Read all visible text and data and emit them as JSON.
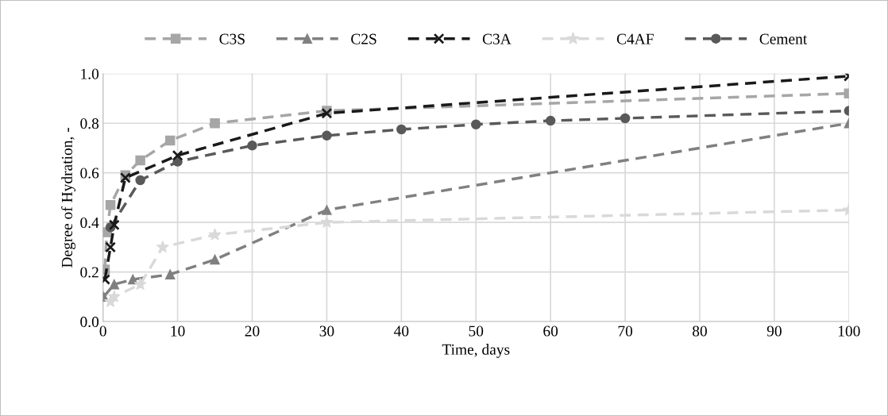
{
  "chart_data": {
    "type": "line",
    "xlabel": "Time, days",
    "ylabel": "Degree of Hydration, -",
    "xlim": [
      0,
      100
    ],
    "xticks": [
      0,
      10,
      20,
      30,
      40,
      50,
      60,
      70,
      80,
      90,
      100
    ],
    "ylim": [
      0,
      1
    ],
    "yticks": [
      {
        "value": 0,
        "label": "0.0"
      },
      {
        "value": 0.2,
        "label": "0.2"
      },
      {
        "value": 0.4,
        "label": "0.4"
      },
      {
        "value": 0.6,
        "label": "0.6"
      },
      {
        "value": 0.8,
        "label": "0.8"
      },
      {
        "value": 1,
        "label": "1.0"
      }
    ],
    "grid": true,
    "legend": "top",
    "line_style": "dashed",
    "series": [
      {
        "name": "C3S",
        "color": "#a6a6a6",
        "marker": "square",
        "x": [
          0.25,
          0.5,
          1,
          3,
          5,
          9,
          15,
          30,
          100
        ],
        "values": [
          0.21,
          0.36,
          0.47,
          0.59,
          0.65,
          0.73,
          0.8,
          0.85,
          0.92
        ]
      },
      {
        "name": "C2S",
        "color": "#808080",
        "marker": "triangle",
        "x": [
          0.1,
          1.5,
          4,
          9,
          15,
          30,
          100
        ],
        "values": [
          0.1,
          0.15,
          0.17,
          0.19,
          0.25,
          0.45,
          0.8
        ]
      },
      {
        "name": "C3A",
        "color": "#1a1a1a",
        "marker": "cross",
        "x": [
          0.25,
          1,
          1.5,
          3,
          10,
          30,
          100
        ],
        "values": [
          0.17,
          0.3,
          0.39,
          0.58,
          0.67,
          0.84,
          0.99
        ]
      },
      {
        "name": "C4AF",
        "color": "#d9d9d9",
        "marker": "star",
        "x": [
          1,
          1.5,
          5,
          8,
          15,
          30,
          100
        ],
        "values": [
          0.08,
          0.1,
          0.15,
          0.3,
          0.35,
          0.4,
          0.45
        ]
      },
      {
        "name": "Cement",
        "color": "#595959",
        "marker": "circle",
        "x": [
          1,
          5,
          10,
          20,
          30,
          40,
          50,
          60,
          70,
          100
        ],
        "values": [
          0.38,
          0.57,
          0.645,
          0.71,
          0.75,
          0.775,
          0.795,
          0.81,
          0.82,
          0.85
        ]
      }
    ]
  }
}
